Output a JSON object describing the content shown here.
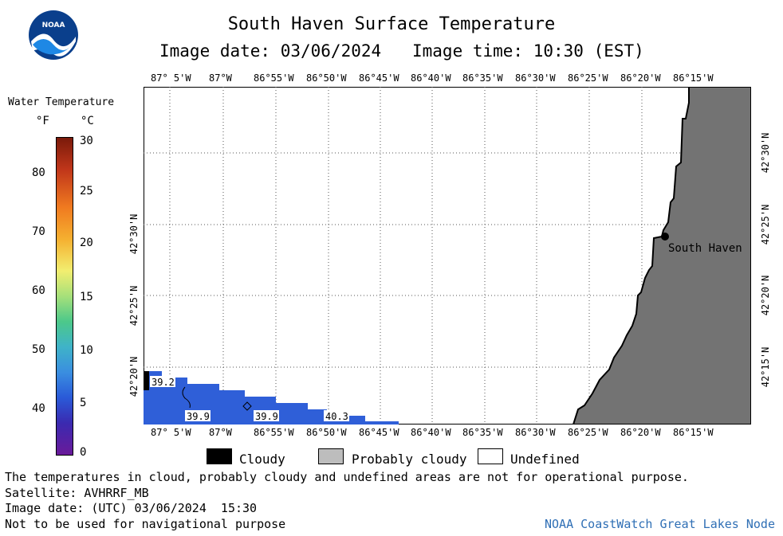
{
  "header": {
    "title": "South Haven Surface Temperature",
    "image_date": "Image date: 03/06/2024",
    "image_time": "Image time: 10:30 (EST)"
  },
  "logo": {
    "text": "NOAA"
  },
  "colorbar": {
    "title": "Water Temperature",
    "unit_f": "°F",
    "unit_c": "°C",
    "f_ticks": [
      "80",
      "70",
      "60",
      "50",
      "40"
    ],
    "c_ticks": [
      "30",
      "25",
      "20",
      "15",
      "10",
      "5",
      "0"
    ]
  },
  "map": {
    "lon_labels": [
      "87° 5'W",
      "87°W",
      "86°55'W",
      "86°50'W",
      "86°45'W",
      "86°40'W",
      "86°35'W",
      "86°30'W",
      "86°25'W",
      "86°20'W",
      "86°15'W"
    ],
    "lat_labels": [
      "42°30'N",
      "42°25'N",
      "42°20'N",
      "42°15'N"
    ],
    "city": "South Haven",
    "temps": [
      "39.2",
      "39.9",
      "39.9",
      "40.3"
    ],
    "land_color": "#737373",
    "water_color": "#2f5fd8"
  },
  "legend": {
    "cloudy": "Cloudy",
    "probably_cloudy": "Probably cloudy",
    "undefined": "Undefined"
  },
  "footer": {
    "disclaimer": "The temperatures in cloud, probably cloudy and undefined areas are not for operational purpose.",
    "satellite": "Satellite: AVHRRF_MB",
    "utc_date": "Image date: (UTC) 03/06/2024  15:30",
    "nav_warning": "Not to be used for navigational purpose",
    "credit": "NOAA CoastWatch Great Lakes Node"
  }
}
